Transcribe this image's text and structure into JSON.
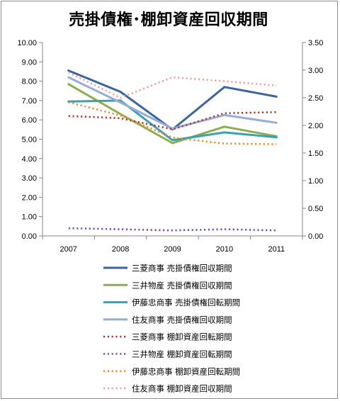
{
  "chart_data": {
    "type": "line",
    "title": "売掛債権･棚卸資産回収期間",
    "categories": [
      "2007",
      "2008",
      "2009",
      "2010",
      "2011"
    ],
    "y_left": {
      "min": 0,
      "max": 10,
      "step": 1,
      "ticks": [
        "0.00",
        "1.00",
        "2.00",
        "3.00",
        "4.00",
        "5.00",
        "6.00",
        "7.00",
        "8.00",
        "9.00",
        "10.00"
      ]
    },
    "y_right": {
      "min": 0,
      "max": 3.5,
      "step": 0.5,
      "ticks": [
        "0.00",
        "0.50",
        "1.00",
        "1.50",
        "2.00",
        "2.50",
        "3.00",
        "3.50"
      ]
    },
    "grid": false,
    "legend_position": "bottom",
    "series": [
      {
        "name": "三菱商事 売掛債権回収期間",
        "axis": "left",
        "style": "solid",
        "color": "#3a64a4",
        "values": [
          8.55,
          7.45,
          5.5,
          7.7,
          7.2
        ]
      },
      {
        "name": "三井物産 売掛債権回収期間",
        "axis": "left",
        "style": "solid",
        "color": "#8cae4b",
        "values": [
          7.85,
          6.3,
          4.8,
          5.65,
          5.15
        ]
      },
      {
        "name": "伊藤忠商事 売掛債権回転期間",
        "axis": "left",
        "style": "solid",
        "color": "#3aa0b4",
        "values": [
          6.95,
          7.0,
          4.95,
          5.35,
          5.1
        ]
      },
      {
        "name": "住友商事 売掛債権回収期間",
        "axis": "left",
        "style": "solid",
        "color": "#98acd8",
        "values": [
          8.2,
          6.9,
          5.55,
          6.25,
          5.85
        ]
      },
      {
        "name": "三菱商事 棚卸資産回転期間",
        "axis": "right",
        "style": "dotted",
        "color": "#b03a36",
        "values": [
          2.17,
          2.13,
          1.93,
          2.22,
          2.24
        ]
      },
      {
        "name": "三井物産 棚卸資産回転期間",
        "axis": "right",
        "style": "dotted",
        "color": "#7a4ea8",
        "values": [
          0.14,
          0.12,
          0.1,
          0.12,
          0.1
        ]
      },
      {
        "name": "伊藤忠商事 棚卸資産回転期間",
        "axis": "right",
        "style": "dotted",
        "color": "#f08a2e",
        "values": [
          2.42,
          2.18,
          1.78,
          1.67,
          1.66
        ]
      },
      {
        "name": "住友商事 棚卸資産回収期間",
        "axis": "right",
        "style": "dotted",
        "color": "#f0a49e",
        "values": [
          2.96,
          2.5,
          2.87,
          2.8,
          2.72
        ]
      }
    ]
  }
}
